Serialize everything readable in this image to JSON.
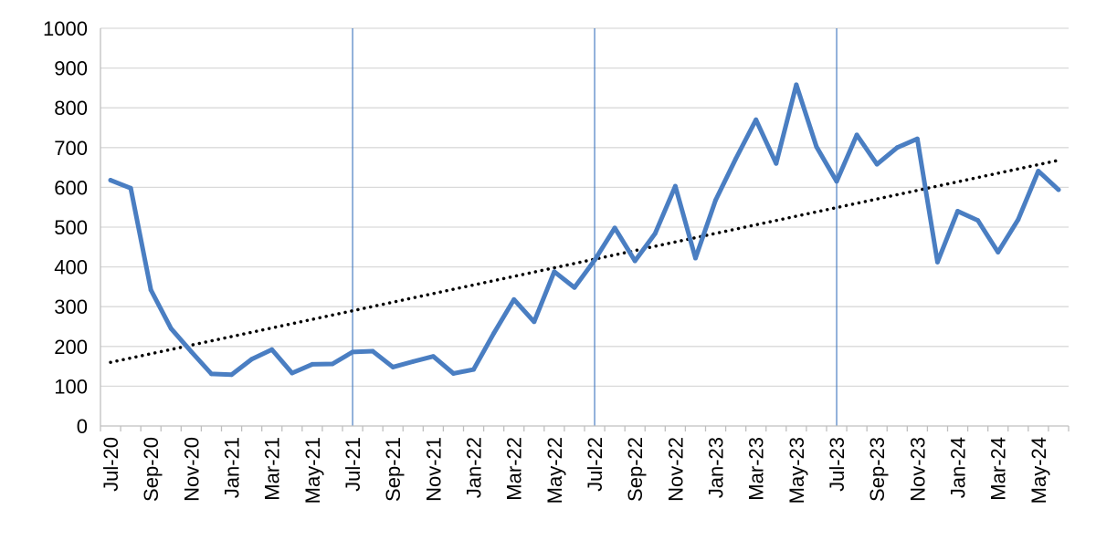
{
  "chart_data": {
    "type": "line",
    "title": "",
    "xlabel": "",
    "ylabel": "",
    "ylim": [
      0,
      1000
    ],
    "yticks": [
      "0",
      "100",
      "200",
      "300",
      "400",
      "500",
      "600",
      "700",
      "800",
      "900",
      "1000"
    ],
    "grid": "horizontal",
    "legend": "none",
    "x": [
      "Jul-20",
      "Aug-20",
      "Sep-20",
      "Oct-20",
      "Nov-20",
      "Dec-20",
      "Jan-21",
      "Feb-21",
      "Mar-21",
      "Apr-21",
      "May-21",
      "Jun-21",
      "Jul-21",
      "Aug-21",
      "Sep-21",
      "Oct-21",
      "Nov-21",
      "Dec-21",
      "Jan-22",
      "Feb-22",
      "Mar-22",
      "Apr-22",
      "May-22",
      "Jun-22",
      "Jul-22",
      "Aug-22",
      "Sep-22",
      "Oct-22",
      "Nov-22",
      "Dec-22",
      "Jan-23",
      "Feb-23",
      "Mar-23",
      "Apr-23",
      "May-23",
      "Jun-23",
      "Jul-23",
      "Aug-23",
      "Sep-23",
      "Oct-23",
      "Nov-23",
      "Dec-23",
      "Jan-24",
      "Feb-24",
      "Mar-24",
      "Apr-24",
      "May-24",
      "Jun-24"
    ],
    "x_tick_labels": [
      "Jul-20",
      "Sep-20",
      "Nov-20",
      "Jan-21",
      "Mar-21",
      "May-21",
      "Jul-21",
      "Sep-21",
      "Nov-21",
      "Jan-22",
      "Mar-22",
      "May-22",
      "Jul-22",
      "Sep-22",
      "Nov-22",
      "Jan-23",
      "Mar-23",
      "May-23",
      "Jul-23",
      "Sep-23",
      "Nov-23",
      "Jan-24",
      "Mar-24",
      "May-24"
    ],
    "series": [
      {
        "values": [
          618,
          598,
          342,
          245,
          187,
          131,
          129,
          168,
          192,
          133,
          155,
          156,
          186,
          188,
          148,
          162,
          175,
          132,
          142,
          233,
          318,
          262,
          388,
          348,
          417,
          498,
          415,
          484,
          603,
          422,
          568,
          672,
          770,
          660,
          858,
          702,
          615,
          732,
          658,
          700,
          722,
          412,
          540,
          517,
          437,
          519,
          641,
          594
        ]
      },
      {
        "type": "linear-trend",
        "start": 160,
        "end": 668
      }
    ],
    "vertical_markers": [
      "Jul-21",
      "Jul-22",
      "Jul-23"
    ],
    "colors": {
      "line": "#4A7EC2",
      "trend": "#000000",
      "grid": "#D9D9D9",
      "marker": "#4A7EC2",
      "axis": "#BFBFBF"
    }
  }
}
